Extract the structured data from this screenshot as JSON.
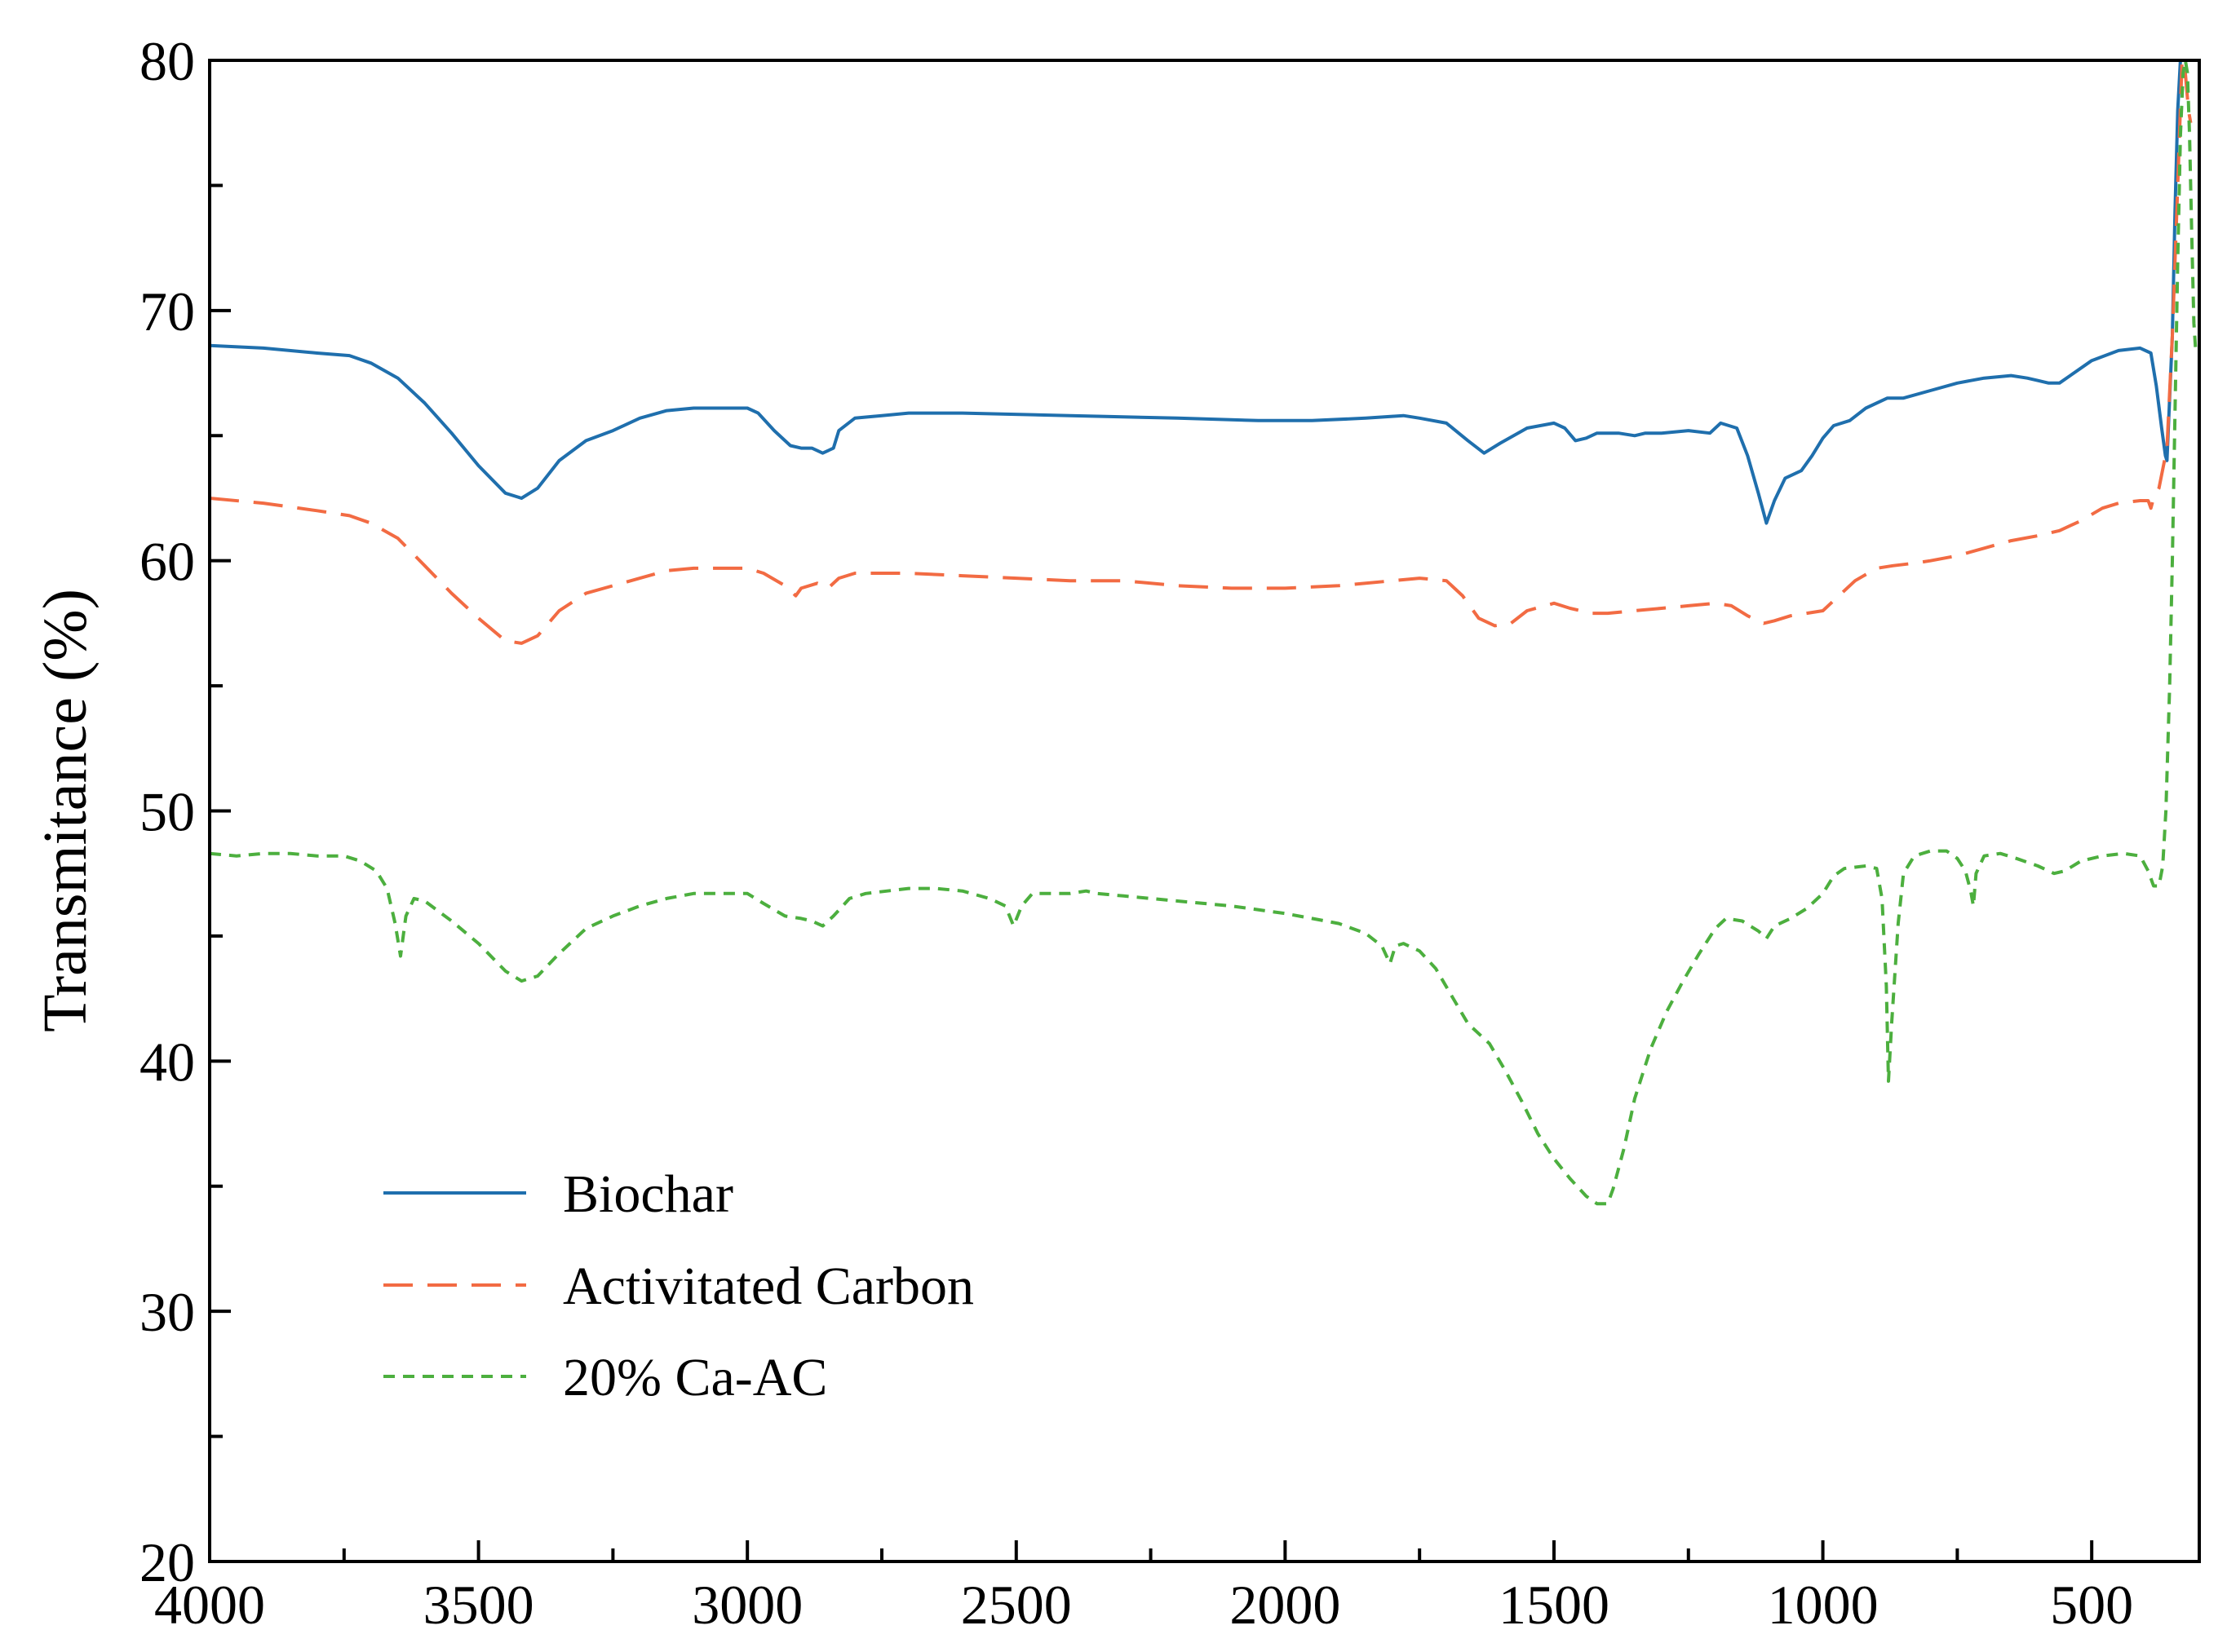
{
  "chart_data": {
    "type": "line",
    "title": "",
    "xlabel": "",
    "ylabel": "Transmitance (%)",
    "xlim": [
      4000,
      300
    ],
    "ylim": [
      20,
      80
    ],
    "x_reversed": true,
    "grid": false,
    "legend_position": "lower-left",
    "x_ticks": [
      4000,
      3500,
      3000,
      2500,
      2000,
      1500,
      1000,
      500
    ],
    "x_tick_labels": [
      "4000",
      "3500",
      "3000",
      "2500",
      "2000",
      "1500",
      "1000",
      "500"
    ],
    "x_minor_ticks": [
      3750,
      3250,
      2750,
      2250,
      1750,
      1250,
      750
    ],
    "y_ticks": [
      20,
      30,
      40,
      50,
      60,
      70,
      80
    ],
    "y_tick_labels": [
      "20",
      "30",
      "40",
      "50",
      "60",
      "70",
      "80"
    ],
    "y_minor_ticks": [
      25,
      35,
      45,
      55,
      65,
      75
    ],
    "series": [
      {
        "name": "Biochar",
        "color": "#1f6fad",
        "dash": "solid",
        "points": [
          [
            4000,
            68.6
          ],
          [
            3900,
            68.5
          ],
          [
            3800,
            68.3
          ],
          [
            3740,
            68.2
          ],
          [
            3700,
            67.9
          ],
          [
            3650,
            67.3
          ],
          [
            3600,
            66.3
          ],
          [
            3550,
            65.1
          ],
          [
            3500,
            63.8
          ],
          [
            3450,
            62.7
          ],
          [
            3420,
            62.5
          ],
          [
            3390,
            62.9
          ],
          [
            3350,
            64.0
          ],
          [
            3300,
            64.8
          ],
          [
            3250,
            65.2
          ],
          [
            3200,
            65.7
          ],
          [
            3150,
            66.0
          ],
          [
            3100,
            66.1
          ],
          [
            3000,
            66.1
          ],
          [
            2980,
            65.9
          ],
          [
            2950,
            65.2
          ],
          [
            2920,
            64.6
          ],
          [
            2900,
            64.5
          ],
          [
            2880,
            64.5
          ],
          [
            2860,
            64.3
          ],
          [
            2840,
            64.5
          ],
          [
            2830,
            65.2
          ],
          [
            2800,
            65.7
          ],
          [
            2750,
            65.8
          ],
          [
            2700,
            65.9
          ],
          [
            2600,
            65.9
          ],
          [
            2400,
            65.8
          ],
          [
            2200,
            65.7
          ],
          [
            2050,
            65.6
          ],
          [
            1950,
            65.6
          ],
          [
            1850,
            65.7
          ],
          [
            1780,
            65.8
          ],
          [
            1750,
            65.7
          ],
          [
            1700,
            65.5
          ],
          [
            1660,
            64.8
          ],
          [
            1630,
            64.3
          ],
          [
            1600,
            64.7
          ],
          [
            1550,
            65.3
          ],
          [
            1500,
            65.5
          ],
          [
            1480,
            65.3
          ],
          [
            1460,
            64.8
          ],
          [
            1440,
            64.9
          ],
          [
            1420,
            65.1
          ],
          [
            1380,
            65.1
          ],
          [
            1350,
            65.0
          ],
          [
            1330,
            65.1
          ],
          [
            1300,
            65.1
          ],
          [
            1250,
            65.2
          ],
          [
            1210,
            65.1
          ],
          [
            1190,
            65.5
          ],
          [
            1160,
            65.3
          ],
          [
            1140,
            64.2
          ],
          [
            1120,
            62.7
          ],
          [
            1105,
            61.5
          ],
          [
            1090,
            62.4
          ],
          [
            1070,
            63.3
          ],
          [
            1040,
            63.6
          ],
          [
            1020,
            64.2
          ],
          [
            1000,
            64.9
          ],
          [
            980,
            65.4
          ],
          [
            950,
            65.6
          ],
          [
            920,
            66.1
          ],
          [
            880,
            66.5
          ],
          [
            850,
            66.5
          ],
          [
            800,
            66.8
          ],
          [
            750,
            67.1
          ],
          [
            700,
            67.3
          ],
          [
            650,
            67.4
          ],
          [
            620,
            67.3
          ],
          [
            600,
            67.2
          ],
          [
            580,
            67.1
          ],
          [
            560,
            67.1
          ],
          [
            540,
            67.4
          ],
          [
            500,
            68.0
          ],
          [
            450,
            68.4
          ],
          [
            410,
            68.5
          ],
          [
            390,
            68.3
          ],
          [
            380,
            67.0
          ],
          [
            370,
            65.3
          ],
          [
            363,
            64.2
          ],
          [
            360,
            64.0
          ],
          [
            350,
            69.0
          ],
          [
            345,
            74.0
          ],
          [
            340,
            78.0
          ],
          [
            335,
            80.0
          ]
        ]
      },
      {
        "name": "Activitated Carbon",
        "color": "#f26b43",
        "dash": "long",
        "points": [
          [
            4000,
            62.5
          ],
          [
            3900,
            62.3
          ],
          [
            3800,
            62.0
          ],
          [
            3740,
            61.8
          ],
          [
            3700,
            61.5
          ],
          [
            3650,
            60.9
          ],
          [
            3600,
            59.8
          ],
          [
            3550,
            58.7
          ],
          [
            3500,
            57.7
          ],
          [
            3450,
            56.8
          ],
          [
            3420,
            56.7
          ],
          [
            3390,
            57.0
          ],
          [
            3350,
            58.0
          ],
          [
            3300,
            58.7
          ],
          [
            3250,
            59.0
          ],
          [
            3200,
            59.3
          ],
          [
            3150,
            59.6
          ],
          [
            3100,
            59.7
          ],
          [
            3000,
            59.7
          ],
          [
            2970,
            59.5
          ],
          [
            2930,
            59.0
          ],
          [
            2910,
            58.6
          ],
          [
            2900,
            58.9
          ],
          [
            2870,
            59.1
          ],
          [
            2850,
            58.9
          ],
          [
            2830,
            59.3
          ],
          [
            2800,
            59.5
          ],
          [
            2700,
            59.5
          ],
          [
            2600,
            59.4
          ],
          [
            2400,
            59.2
          ],
          [
            2300,
            59.2
          ],
          [
            2200,
            59.0
          ],
          [
            2100,
            58.9
          ],
          [
            2000,
            58.9
          ],
          [
            1900,
            59.0
          ],
          [
            1800,
            59.2
          ],
          [
            1750,
            59.3
          ],
          [
            1700,
            59.2
          ],
          [
            1670,
            58.6
          ],
          [
            1640,
            57.7
          ],
          [
            1610,
            57.4
          ],
          [
            1580,
            57.5
          ],
          [
            1550,
            58.0
          ],
          [
            1500,
            58.3
          ],
          [
            1470,
            58.1
          ],
          [
            1430,
            57.9
          ],
          [
            1400,
            57.9
          ],
          [
            1350,
            58.0
          ],
          [
            1300,
            58.1
          ],
          [
            1250,
            58.2
          ],
          [
            1200,
            58.3
          ],
          [
            1170,
            58.2
          ],
          [
            1140,
            57.8
          ],
          [
            1110,
            57.5
          ],
          [
            1090,
            57.6
          ],
          [
            1060,
            57.8
          ],
          [
            1030,
            57.9
          ],
          [
            1000,
            58.0
          ],
          [
            970,
            58.6
          ],
          [
            940,
            59.2
          ],
          [
            900,
            59.7
          ],
          [
            870,
            59.8
          ],
          [
            830,
            59.9
          ],
          [
            800,
            60.0
          ],
          [
            750,
            60.2
          ],
          [
            700,
            60.5
          ],
          [
            650,
            60.8
          ],
          [
            600,
            61.0
          ],
          [
            560,
            61.2
          ],
          [
            520,
            61.6
          ],
          [
            480,
            62.1
          ],
          [
            450,
            62.3
          ],
          [
            410,
            62.4
          ],
          [
            395,
            62.4
          ],
          [
            390,
            62.1
          ],
          [
            385,
            62.5
          ],
          [
            375,
            62.9
          ],
          [
            360,
            64.5
          ],
          [
            350,
            69.0
          ],
          [
            340,
            75.0
          ],
          [
            332,
            80.0
          ],
          [
            326,
            79.5
          ],
          [
            320,
            78.0
          ],
          [
            316,
            77.5
          ]
        ]
      },
      {
        "name": "20% Ca-AC",
        "color": "#4caf3e",
        "dash": "short",
        "points": [
          [
            4000,
            48.3
          ],
          [
            3950,
            48.2
          ],
          [
            3900,
            48.3
          ],
          [
            3850,
            48.3
          ],
          [
            3800,
            48.2
          ],
          [
            3750,
            48.2
          ],
          [
            3720,
            48.0
          ],
          [
            3690,
            47.6
          ],
          [
            3670,
            46.9
          ],
          [
            3655,
            45.5
          ],
          [
            3645,
            44.2
          ],
          [
            3635,
            45.8
          ],
          [
            3620,
            46.5
          ],
          [
            3600,
            46.4
          ],
          [
            3550,
            45.6
          ],
          [
            3500,
            44.7
          ],
          [
            3450,
            43.6
          ],
          [
            3420,
            43.2
          ],
          [
            3390,
            43.4
          ],
          [
            3350,
            44.3
          ],
          [
            3300,
            45.3
          ],
          [
            3250,
            45.8
          ],
          [
            3200,
            46.2
          ],
          [
            3150,
            46.5
          ],
          [
            3100,
            46.7
          ],
          [
            3000,
            46.7
          ],
          [
            2970,
            46.3
          ],
          [
            2930,
            45.8
          ],
          [
            2900,
            45.7
          ],
          [
            2880,
            45.6
          ],
          [
            2860,
            45.4
          ],
          [
            2840,
            45.8
          ],
          [
            2810,
            46.5
          ],
          [
            2780,
            46.7
          ],
          [
            2700,
            46.9
          ],
          [
            2650,
            46.9
          ],
          [
            2600,
            46.8
          ],
          [
            2550,
            46.5
          ],
          [
            2520,
            46.2
          ],
          [
            2505,
            45.4
          ],
          [
            2490,
            46.2
          ],
          [
            2470,
            46.7
          ],
          [
            2400,
            46.7
          ],
          [
            2370,
            46.8
          ],
          [
            2350,
            46.7
          ],
          [
            2300,
            46.6
          ],
          [
            2200,
            46.4
          ],
          [
            2100,
            46.2
          ],
          [
            2000,
            45.9
          ],
          [
            1950,
            45.7
          ],
          [
            1900,
            45.5
          ],
          [
            1850,
            45.1
          ],
          [
            1820,
            44.6
          ],
          [
            1805,
            43.9
          ],
          [
            1795,
            44.6
          ],
          [
            1780,
            44.7
          ],
          [
            1750,
            44.4
          ],
          [
            1720,
            43.7
          ],
          [
            1690,
            42.6
          ],
          [
            1660,
            41.5
          ],
          [
            1620,
            40.7
          ],
          [
            1590,
            39.6
          ],
          [
            1560,
            38.4
          ],
          [
            1530,
            37.1
          ],
          [
            1500,
            36.1
          ],
          [
            1470,
            35.3
          ],
          [
            1440,
            34.6
          ],
          [
            1420,
            34.3
          ],
          [
            1400,
            34.3
          ],
          [
            1390,
            34.9
          ],
          [
            1370,
            36.5
          ],
          [
            1350,
            38.5
          ],
          [
            1320,
            40.5
          ],
          [
            1290,
            42.0
          ],
          [
            1260,
            43.2
          ],
          [
            1230,
            44.3
          ],
          [
            1200,
            45.3
          ],
          [
            1180,
            45.7
          ],
          [
            1150,
            45.6
          ],
          [
            1120,
            45.2
          ],
          [
            1105,
            44.9
          ],
          [
            1090,
            45.4
          ],
          [
            1060,
            45.7
          ],
          [
            1030,
            46.1
          ],
          [
            1000,
            46.7
          ],
          [
            980,
            47.4
          ],
          [
            960,
            47.7
          ],
          [
            920,
            47.8
          ],
          [
            900,
            47.7
          ],
          [
            890,
            46.5
          ],
          [
            882,
            43.0
          ],
          [
            878,
            39.2
          ],
          [
            872,
            41.5
          ],
          [
            860,
            45.5
          ],
          [
            850,
            47.5
          ],
          [
            830,
            48.2
          ],
          [
            800,
            48.4
          ],
          [
            770,
            48.4
          ],
          [
            750,
            48.1
          ],
          [
            735,
            47.6
          ],
          [
            725,
            46.8
          ],
          [
            720,
            46.2
          ],
          [
            715,
            47.5
          ],
          [
            700,
            48.2
          ],
          [
            670,
            48.3
          ],
          [
            640,
            48.1
          ],
          [
            600,
            47.8
          ],
          [
            570,
            47.5
          ],
          [
            550,
            47.6
          ],
          [
            520,
            48.0
          ],
          [
            480,
            48.2
          ],
          [
            440,
            48.3
          ],
          [
            410,
            48.2
          ],
          [
            395,
            47.6
          ],
          [
            385,
            47.0
          ],
          [
            375,
            47.0
          ],
          [
            368,
            47.8
          ],
          [
            362,
            50.0
          ],
          [
            355,
            55.0
          ],
          [
            350,
            60.0
          ],
          [
            345,
            66.0
          ],
          [
            340,
            72.0
          ],
          [
            335,
            77.0
          ],
          [
            330,
            79.5
          ],
          [
            326,
            80.0
          ],
          [
            322,
            79.5
          ],
          [
            318,
            77.0
          ],
          [
            314,
            73.0
          ],
          [
            310,
            69.5
          ],
          [
            307,
            68.5
          ]
        ]
      }
    ]
  }
}
